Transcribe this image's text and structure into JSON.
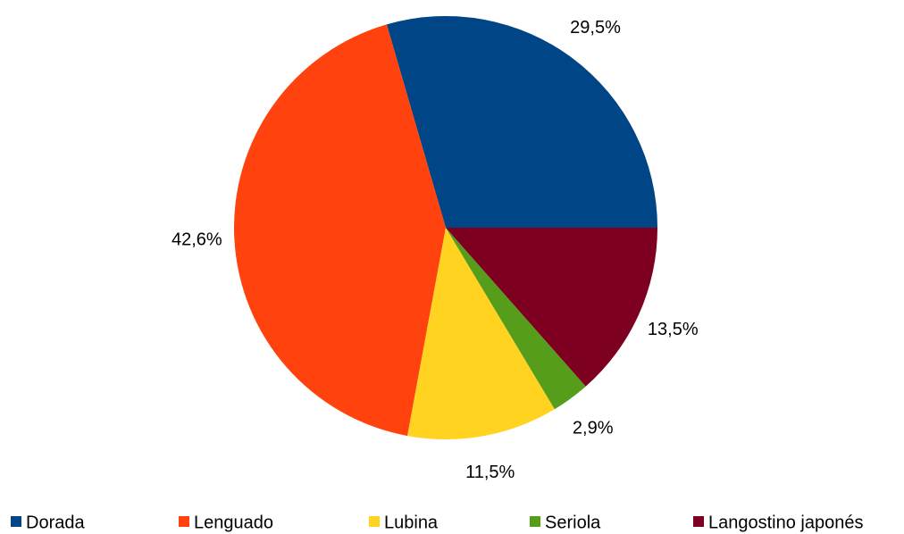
{
  "chart_data": {
    "type": "pie",
    "categories": [
      "Dorada",
      "Lenguado",
      "Lubina",
      "Seriola",
      "Langostino japonés"
    ],
    "values": [
      29.5,
      42.6,
      11.5,
      2.9,
      13.5
    ],
    "value_labels": [
      "29,5%",
      "42,6%",
      "11,5%",
      "2,9%",
      "13,5%"
    ],
    "colors": [
      "#004586",
      "#ff420e",
      "#ffd320",
      "#579d1c",
      "#7e0021"
    ],
    "legend": "bottom"
  }
}
